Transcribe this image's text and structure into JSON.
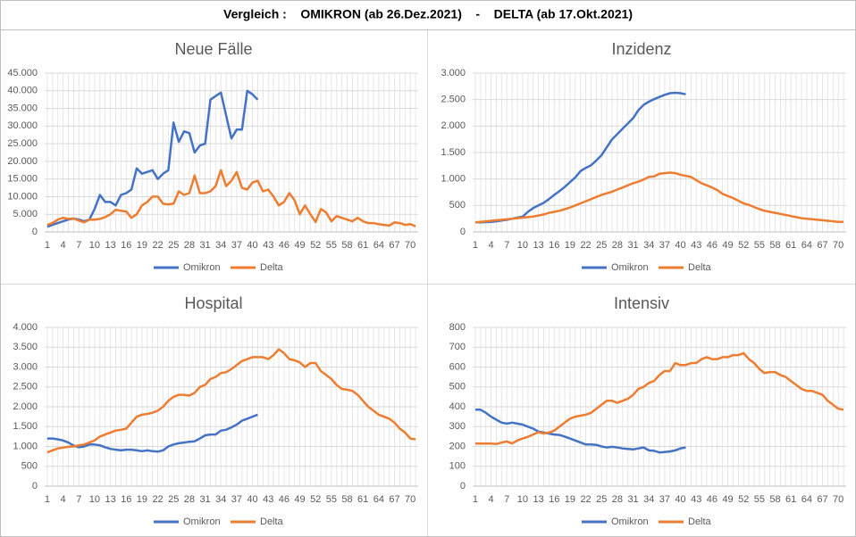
{
  "header": {
    "title": "Vergleich :    OMIKRON (ab 26.Dez.2021)    -    DELTA (ab 17.Okt.2021)"
  },
  "chart_data": [
    {
      "type": "line",
      "title": "Neue Fälle",
      "grid": true,
      "x": [
        1,
        2,
        3,
        4,
        5,
        6,
        7,
        8,
        9,
        10,
        11,
        12,
        13,
        14,
        15,
        16,
        17,
        18,
        19,
        20,
        21,
        22,
        23,
        24,
        25,
        26,
        27,
        28,
        29,
        30,
        31,
        32,
        33,
        34,
        35,
        36,
        37,
        38,
        39,
        40,
        41,
        42,
        43,
        44,
        45,
        46,
        47,
        48,
        49,
        50,
        51,
        52,
        53,
        54,
        55,
        56,
        57,
        58,
        59,
        60,
        61,
        62,
        63,
        64,
        65,
        66,
        67,
        68,
        69,
        70,
        71
      ],
      "xticks": [
        1,
        4,
        7,
        10,
        13,
        16,
        19,
        22,
        25,
        28,
        31,
        34,
        37,
        40,
        43,
        46,
        49,
        52,
        55,
        58,
        61,
        64,
        67,
        70
      ],
      "ylim": [
        0,
        45000
      ],
      "yticks": [
        0,
        {
          "value": 5000,
          "label": "5.000"
        },
        {
          "value": 10000,
          "label": "10.000"
        },
        {
          "value": 15000,
          "label": "15.000"
        },
        {
          "value": 20000,
          "label": "20.000"
        },
        {
          "value": 25000,
          "label": "25.000"
        },
        {
          "value": 30000,
          "label": "30.000"
        },
        {
          "value": 35000,
          "label": "35.000"
        },
        {
          "value": 40000,
          "label": "40.000"
        },
        {
          "value": 45000,
          "label": "45.000"
        }
      ],
      "series": [
        {
          "name": "Omikron",
          "color": "#4472c4",
          "values": [
            1500,
            2000,
            2500,
            3000,
            3500,
            3800,
            3500,
            3000,
            3500,
            6500,
            10500,
            8500,
            8500,
            7500,
            10500,
            11000,
            12000,
            18000,
            16500,
            17000,
            17500,
            15000,
            16500,
            17500,
            31000,
            25500,
            28500,
            28000,
            22500,
            24500,
            25000,
            37500,
            38500,
            39500,
            33000,
            26500,
            29000,
            29000,
            40000,
            39000,
            37500,
            null,
            null,
            null,
            null,
            null,
            null,
            null,
            null,
            null,
            null,
            null,
            null,
            null,
            null,
            null,
            null,
            null,
            null,
            null,
            null,
            null,
            null,
            null,
            null,
            null,
            null,
            null,
            null,
            null,
            null
          ]
        },
        {
          "name": "Delta",
          "color": "#ed7d31",
          "values": [
            2000,
            2500,
            3500,
            4000,
            3700,
            3800,
            3200,
            2700,
            3500,
            3500,
            3700,
            4200,
            5000,
            6300,
            6000,
            5800,
            4000,
            5000,
            7500,
            8500,
            10000,
            10000,
            8000,
            7800,
            8000,
            11500,
            10500,
            11000,
            16000,
            11000,
            11000,
            11500,
            13000,
            17500,
            13000,
            14500,
            17000,
            12500,
            12000,
            14000,
            14500,
            11500,
            12000,
            10000,
            7500,
            8500,
            11000,
            9000,
            5000,
            7500,
            5000,
            2800,
            6500,
            5500,
            3000,
            4500,
            4000,
            3500,
            3000,
            4000,
            3000,
            2500,
            2500,
            2200,
            2000,
            1800,
            2700,
            2500,
            2000,
            2200,
            1600
          ]
        }
      ]
    },
    {
      "type": "line",
      "title": "Inzidenz",
      "grid": true,
      "x": [
        1,
        2,
        3,
        4,
        5,
        6,
        7,
        8,
        9,
        10,
        11,
        12,
        13,
        14,
        15,
        16,
        17,
        18,
        19,
        20,
        21,
        22,
        23,
        24,
        25,
        26,
        27,
        28,
        29,
        30,
        31,
        32,
        33,
        34,
        35,
        36,
        37,
        38,
        39,
        40,
        41,
        42,
        43,
        44,
        45,
        46,
        47,
        48,
        49,
        50,
        51,
        52,
        53,
        54,
        55,
        56,
        57,
        58,
        59,
        60,
        61,
        62,
        63,
        64,
        65,
        66,
        67,
        68,
        69,
        70,
        71
      ],
      "xticks": [
        1,
        4,
        7,
        10,
        13,
        16,
        19,
        22,
        25,
        28,
        31,
        34,
        37,
        40,
        43,
        46,
        49,
        52,
        55,
        58,
        61,
        64,
        67,
        70
      ],
      "ylim": [
        0,
        3000
      ],
      "yticks": [
        0,
        500,
        {
          "value": 1000,
          "label": "1.000"
        },
        {
          "value": 1500,
          "label": "1.500"
        },
        {
          "value": 2000,
          "label": "2.000"
        },
        {
          "value": 2500,
          "label": "2.500"
        },
        {
          "value": 3000,
          "label": "3.000"
        }
      ],
      "series": [
        {
          "name": "Omikron",
          "color": "#4472c4",
          "values": [
            180,
            180,
            185,
            190,
            200,
            215,
            230,
            250,
            270,
            290,
            380,
            450,
            500,
            550,
            620,
            700,
            770,
            850,
            940,
            1030,
            1150,
            1210,
            1260,
            1350,
            1450,
            1600,
            1750,
            1850,
            1950,
            2050,
            2150,
            2300,
            2400,
            2460,
            2510,
            2550,
            2590,
            2620,
            2630,
            2620,
            2600,
            null,
            null,
            null,
            null,
            null,
            null,
            null,
            null,
            null,
            null,
            null,
            null,
            null,
            null,
            null,
            null,
            null,
            null,
            null,
            null,
            null,
            null,
            null,
            null,
            null,
            null,
            null,
            null,
            null,
            null
          ]
        },
        {
          "name": "Delta",
          "color": "#ed7d31",
          "values": [
            180,
            190,
            200,
            210,
            220,
            230,
            240,
            250,
            260,
            270,
            280,
            290,
            310,
            330,
            360,
            380,
            400,
            430,
            460,
            500,
            540,
            580,
            620,
            660,
            700,
            730,
            760,
            800,
            840,
            880,
            920,
            950,
            990,
            1040,
            1050,
            1100,
            1110,
            1120,
            1110,
            1080,
            1060,
            1040,
            980,
            920,
            880,
            840,
            790,
            720,
            680,
            640,
            590,
            540,
            510,
            470,
            430,
            400,
            380,
            360,
            340,
            320,
            300,
            280,
            260,
            250,
            240,
            230,
            220,
            210,
            200,
            190,
            190
          ]
        }
      ]
    },
    {
      "type": "line",
      "title": "Hospital",
      "grid": true,
      "x": [
        1,
        2,
        3,
        4,
        5,
        6,
        7,
        8,
        9,
        10,
        11,
        12,
        13,
        14,
        15,
        16,
        17,
        18,
        19,
        20,
        21,
        22,
        23,
        24,
        25,
        26,
        27,
        28,
        29,
        30,
        31,
        32,
        33,
        34,
        35,
        36,
        37,
        38,
        39,
        40,
        41,
        42,
        43,
        44,
        45,
        46,
        47,
        48,
        49,
        50,
        51,
        52,
        53,
        54,
        55,
        56,
        57,
        58,
        59,
        60,
        61,
        62,
        63,
        64,
        65,
        66,
        67,
        68,
        69,
        70,
        71
      ],
      "xticks": [
        1,
        4,
        7,
        10,
        13,
        16,
        19,
        22,
        25,
        28,
        31,
        34,
        37,
        40,
        43,
        46,
        49,
        52,
        55,
        58,
        61,
        64,
        67,
        70
      ],
      "ylim": [
        0,
        4000
      ],
      "yticks": [
        0,
        500,
        {
          "value": 1000,
          "label": "1.000"
        },
        {
          "value": 1500,
          "label": "1.500"
        },
        {
          "value": 2000,
          "label": "2.000"
        },
        {
          "value": 2500,
          "label": "2.500"
        },
        {
          "value": 3000,
          "label": "3.000"
        },
        {
          "value": 3500,
          "label": "3.500"
        },
        {
          "value": 4000,
          "label": "4.000"
        }
      ],
      "series": [
        {
          "name": "Omikron",
          "color": "#4472c4",
          "values": [
            1200,
            1200,
            1180,
            1150,
            1100,
            1020,
            980,
            1000,
            1050,
            1050,
            1030,
            980,
            940,
            920,
            900,
            920,
            920,
            900,
            880,
            900,
            880,
            870,
            900,
            1000,
            1050,
            1080,
            1100,
            1120,
            1130,
            1200,
            1280,
            1300,
            1300,
            1400,
            1420,
            1480,
            1550,
            1650,
            1700,
            1750,
            1800,
            null,
            null,
            null,
            null,
            null,
            null,
            null,
            null,
            null,
            null,
            null,
            null,
            null,
            null,
            null,
            null,
            null,
            null,
            null,
            null,
            null,
            null,
            null,
            null,
            null,
            null,
            null,
            null,
            null,
            null
          ]
        },
        {
          "name": "Delta",
          "color": "#ed7d31",
          "values": [
            850,
            900,
            950,
            970,
            990,
            1000,
            1030,
            1050,
            1100,
            1150,
            1250,
            1300,
            1350,
            1400,
            1420,
            1450,
            1600,
            1750,
            1800,
            1820,
            1850,
            1900,
            2000,
            2150,
            2250,
            2300,
            2300,
            2280,
            2350,
            2500,
            2550,
            2700,
            2750,
            2850,
            2870,
            2950,
            3050,
            3150,
            3200,
            3250,
            3250,
            3250,
            3200,
            3300,
            3450,
            3350,
            3200,
            3170,
            3120,
            3000,
            3100,
            3100,
            2900,
            2800,
            2700,
            2550,
            2450,
            2430,
            2400,
            2300,
            2150,
            2000,
            1900,
            1800,
            1750,
            1700,
            1600,
            1450,
            1350,
            1200,
            1180
          ]
        }
      ]
    },
    {
      "type": "line",
      "title": "Intensiv",
      "grid": true,
      "x": [
        1,
        2,
        3,
        4,
        5,
        6,
        7,
        8,
        9,
        10,
        11,
        12,
        13,
        14,
        15,
        16,
        17,
        18,
        19,
        20,
        21,
        22,
        23,
        24,
        25,
        26,
        27,
        28,
        29,
        30,
        31,
        32,
        33,
        34,
        35,
        36,
        37,
        38,
        39,
        40,
        41,
        42,
        43,
        44,
        45,
        46,
        47,
        48,
        49,
        50,
        51,
        52,
        53,
        54,
        55,
        56,
        57,
        58,
        59,
        60,
        61,
        62,
        63,
        64,
        65,
        66,
        67,
        68,
        69,
        70,
        71
      ],
      "xticks": [
        1,
        4,
        7,
        10,
        13,
        16,
        19,
        22,
        25,
        28,
        31,
        34,
        37,
        40,
        43,
        46,
        49,
        52,
        55,
        58,
        61,
        64,
        67,
        70
      ],
      "ylim": [
        0,
        800
      ],
      "yticks": [
        0,
        100,
        200,
        300,
        400,
        500,
        600,
        700,
        800
      ],
      "series": [
        {
          "name": "Omikron",
          "color": "#4472c4",
          "values": [
            385,
            385,
            370,
            350,
            335,
            320,
            315,
            320,
            315,
            310,
            300,
            290,
            275,
            270,
            265,
            260,
            258,
            250,
            240,
            230,
            220,
            210,
            210,
            208,
            200,
            195,
            198,
            195,
            190,
            188,
            185,
            190,
            195,
            180,
            178,
            170,
            172,
            175,
            180,
            190,
            195,
            null,
            null,
            null,
            null,
            null,
            null,
            null,
            null,
            null,
            null,
            null,
            null,
            null,
            null,
            null,
            null,
            null,
            null,
            null,
            null,
            null,
            null,
            null,
            null,
            null,
            null,
            null,
            null,
            null,
            null
          ]
        },
        {
          "name": "Delta",
          "color": "#ed7d31",
          "values": [
            215,
            215,
            215,
            215,
            212,
            220,
            225,
            215,
            230,
            240,
            248,
            260,
            272,
            265,
            270,
            280,
            300,
            320,
            340,
            350,
            355,
            360,
            370,
            390,
            410,
            430,
            430,
            420,
            430,
            440,
            460,
            490,
            500,
            520,
            530,
            560,
            580,
            580,
            620,
            610,
            610,
            620,
            620,
            640,
            650,
            640,
            640,
            650,
            650,
            660,
            660,
            670,
            640,
            620,
            590,
            570,
            575,
            575,
            560,
            550,
            530,
            510,
            490,
            480,
            480,
            470,
            460,
            430,
            410,
            390,
            385
          ]
        }
      ]
    }
  ]
}
